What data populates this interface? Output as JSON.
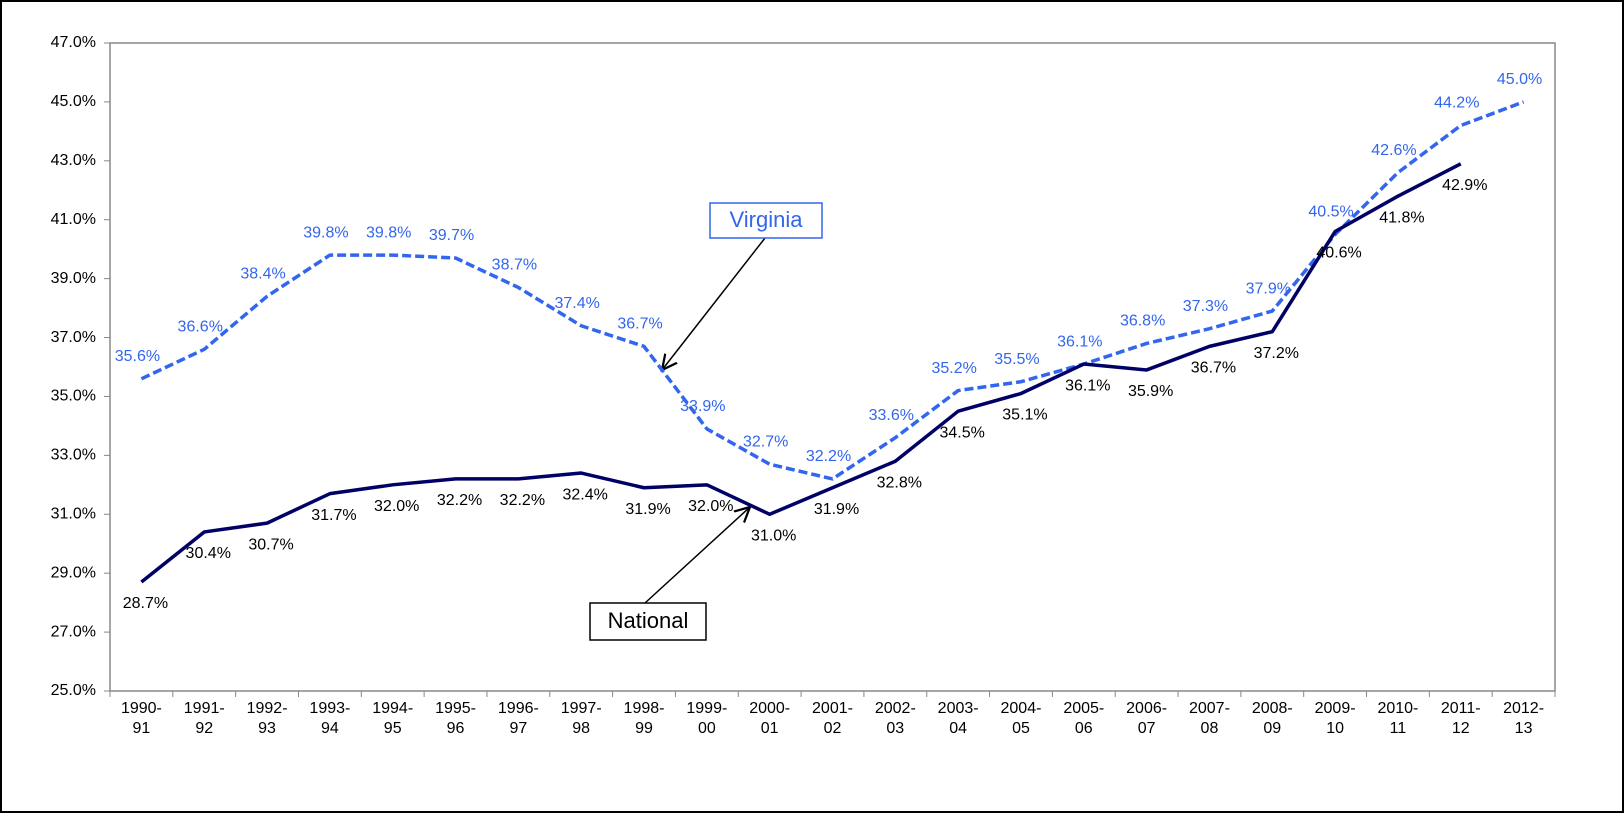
{
  "chart_data": {
    "type": "line",
    "categories": [
      "1990-91",
      "1991-92",
      "1992-93",
      "1993-94",
      "1994-95",
      "1995-96",
      "1996-97",
      "1997-98",
      "1998-99",
      "1999-00",
      "2000-01",
      "2001-02",
      "2002-03",
      "2003-04",
      "2004-05",
      "2005-06",
      "2006-07",
      "2007-08",
      "2008-09",
      "2009-10",
      "2010-11",
      "2011-12",
      "2012-13"
    ],
    "series": [
      {
        "name": "Virginia",
        "color": "#3366ee",
        "dashed": true,
        "values": [
          35.6,
          36.6,
          38.4,
          39.8,
          39.8,
          39.7,
          38.7,
          37.4,
          36.7,
          33.9,
          32.7,
          32.2,
          33.6,
          35.2,
          35.5,
          36.1,
          36.8,
          37.3,
          37.9,
          40.5,
          42.6,
          44.2,
          45.0
        ],
        "value_labels": [
          "35.6%",
          "36.6%",
          "38.4%",
          "39.8%",
          "39.8%",
          "39.7%",
          "38.7%",
          "37.4%",
          "36.7%",
          "33.9%",
          "32.7%",
          "32.2%",
          "33.6%",
          "35.2%",
          "35.5%",
          "36.1%",
          "36.8%",
          "37.3%",
          "37.9%",
          "40.5%",
          "42.6%",
          "44.2%",
          "45.0%"
        ]
      },
      {
        "name": "National",
        "color": "#000066",
        "dashed": false,
        "values": [
          28.7,
          30.4,
          30.7,
          31.7,
          32.0,
          32.2,
          32.2,
          32.4,
          31.9,
          32.0,
          31.0,
          31.9,
          32.8,
          34.5,
          35.1,
          36.1,
          35.9,
          36.7,
          37.2,
          40.6,
          41.8,
          42.9,
          null
        ],
        "value_labels": [
          "28.7%",
          "30.4%",
          "30.7%",
          "31.7%",
          "32.0%",
          "32.2%",
          "32.2%",
          "32.4%",
          "31.9%",
          "32.0%",
          "31.0%",
          "31.9%",
          "32.8%",
          "34.5%",
          "35.1%",
          "36.1%",
          "35.9%",
          "36.7%",
          "37.2%",
          "40.6%",
          "41.8%",
          "42.9%",
          null
        ]
      }
    ],
    "ylim": [
      25,
      47
    ],
    "yticks": [
      {
        "value": 25,
        "label": "25.0%"
      },
      {
        "value": 27,
        "label": "27.0%"
      },
      {
        "value": 29,
        "label": "29.0%"
      },
      {
        "value": 31,
        "label": "31.0%"
      },
      {
        "value": 33,
        "label": "33.0%"
      },
      {
        "value": 35,
        "label": "35.0%"
      },
      {
        "value": 37,
        "label": "37.0%"
      },
      {
        "value": 39,
        "label": "39.0%"
      },
      {
        "value": 41,
        "label": "41.0%"
      },
      {
        "value": 43,
        "label": "43.0%"
      },
      {
        "value": 45,
        "label": "45.0%"
      },
      {
        "value": 47,
        "label": "47.0%"
      }
    ],
    "grid": false
  }
}
